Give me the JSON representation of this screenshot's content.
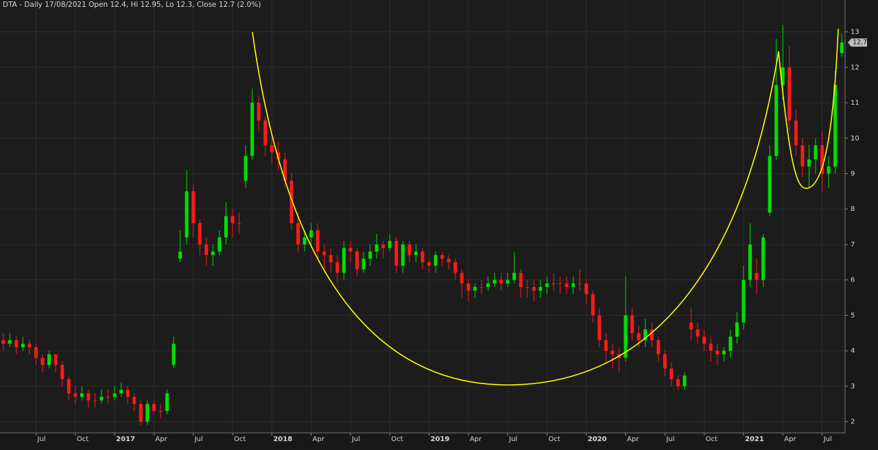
{
  "chart_data": {
    "type": "candlestick",
    "title": "DTA - Daily 17/08/2021 Open 12.4, Hi 12.95, Lo 12.3, Close 12.7 (2.0%)",
    "categories": [
      null,
      null,
      null,
      null,
      null,
      "Jul",
      null,
      null,
      null,
      null,
      null,
      "Oct",
      null,
      null,
      null,
      null,
      null,
      "2017",
      null,
      null,
      null,
      null,
      null,
      "Apr",
      null,
      null,
      null,
      null,
      null,
      "Jul",
      null,
      null,
      null,
      null,
      null,
      "Oct",
      null,
      null,
      null,
      null,
      null,
      "2018",
      null,
      null,
      null,
      null,
      null,
      "Apr",
      null,
      null,
      null,
      null,
      null,
      "Jul",
      null,
      null,
      null,
      null,
      null,
      "Oct",
      null,
      null,
      null,
      null,
      null,
      "2019",
      null,
      null,
      null,
      null,
      null,
      "Apr",
      null,
      null,
      null,
      null,
      null,
      "Jul",
      null,
      null,
      null,
      null,
      null,
      "Oct",
      null,
      null,
      null,
      null,
      null,
      "2020",
      null,
      null,
      null,
      null,
      null,
      "Apr",
      null,
      null,
      null,
      null,
      null,
      "Jul",
      null,
      null,
      null,
      null,
      null,
      "Oct",
      null,
      null,
      null,
      null,
      null,
      "2021",
      null,
      null,
      null,
      null,
      null,
      "Apr",
      null,
      null,
      null,
      null,
      null,
      "Jul",
      null,
      null,
      null
    ],
    "open": [
      4.3,
      4.2,
      4.3,
      4.1,
      4.2,
      4.1,
      3.8,
      3.6,
      3.9,
      3.6,
      3.2,
      2.8,
      2.7,
      2.8,
      2.6,
      2.6,
      2.7,
      2.7,
      2.8,
      2.9,
      2.7,
      2.5,
      2.0,
      2.5,
      2.3,
      2.3,
      3.6,
      6.6,
      7.2,
      8.5,
      7.6,
      7.0,
      6.7,
      6.8,
      7.2,
      7.8,
      7.6,
      8.8,
      9.5,
      11.0,
      10.5,
      9.8,
      9.6,
      9.4,
      8.8,
      7.6,
      7.0,
      7.2,
      7.4,
      6.8,
      6.7,
      6.5,
      6.2,
      6.9,
      6.8,
      6.3,
      6.6,
      6.8,
      7.0,
      6.9,
      7.1,
      6.4,
      7.0,
      6.7,
      6.8,
      6.5,
      6.4,
      6.7,
      6.6,
      6.5,
      6.2,
      5.9,
      5.7,
      5.8,
      5.8,
      5.9,
      6.0,
      5.9,
      6.0,
      6.2,
      5.8,
      5.8,
      5.7,
      5.8,
      5.9,
      5.9,
      5.9,
      5.8,
      5.9,
      5.9,
      5.6,
      5.0,
      4.3,
      4.0,
      3.9,
      3.8,
      5.0,
      4.5,
      4.3,
      4.6,
      4.3,
      3.9,
      3.5,
      3.2,
      3.0,
      4.8,
      4.6,
      4.4,
      4.2,
      4.0,
      3.9,
      4.0,
      4.4,
      4.8,
      6.0,
      6.2,
      6.0,
      7.9,
      9.5,
      11.5,
      12.0,
      10.5,
      9.8,
      9.2,
      9.4,
      9.8,
      9.0,
      9.2,
      12.4
    ],
    "high": [
      4.5,
      4.5,
      4.4,
      4.4,
      4.3,
      4.2,
      3.9,
      4.0,
      3.9,
      3.7,
      3.3,
      3.0,
      3.0,
      2.9,
      2.8,
      2.9,
      2.9,
      3.0,
      3.1,
      3.0,
      2.8,
      2.6,
      2.6,
      2.6,
      2.5,
      2.9,
      4.4,
      7.4,
      9.1,
      8.7,
      7.7,
      7.2,
      7.0,
      7.4,
      8.2,
      8.0,
      7.9,
      9.8,
      11.4,
      11.2,
      10.6,
      10.0,
      9.9,
      9.6,
      9.0,
      7.9,
      7.4,
      7.6,
      7.6,
      7.0,
      6.9,
      6.7,
      7.1,
      7.1,
      6.9,
      6.8,
      7.0,
      7.3,
      7.1,
      7.3,
      7.2,
      7.1,
      7.1,
      7.0,
      6.9,
      6.6,
      6.8,
      6.8,
      6.7,
      6.6,
      6.3,
      6.0,
      5.9,
      6.0,
      6.1,
      6.2,
      6.2,
      6.2,
      6.8,
      6.3,
      6.0,
      6.0,
      6.0,
      6.1,
      6.2,
      6.1,
      6.1,
      6.1,
      6.3,
      6.0,
      5.7,
      5.2,
      4.5,
      4.2,
      4.1,
      6.1,
      5.2,
      4.7,
      4.9,
      4.8,
      4.4,
      4.0,
      3.7,
      3.3,
      3.4,
      5.2,
      4.8,
      4.6,
      4.4,
      4.2,
      4.1,
      4.6,
      5.1,
      6.4,
      7.6,
      6.6,
      7.3,
      9.8,
      12.8,
      13.2,
      12.6,
      10.8,
      10.0,
      9.8,
      10.0,
      10.2,
      9.5,
      11.9,
      12.95
    ],
    "low": [
      4.0,
      4.1,
      3.9,
      4.0,
      3.9,
      3.6,
      3.4,
      3.5,
      3.4,
      3.0,
      2.6,
      2.5,
      2.6,
      2.4,
      2.4,
      2.5,
      2.5,
      2.6,
      2.7,
      2.5,
      2.3,
      1.9,
      1.9,
      2.2,
      2.1,
      2.2,
      3.5,
      6.5,
      7.0,
      7.2,
      6.7,
      6.4,
      6.4,
      6.7,
      7.0,
      7.2,
      7.3,
      8.6,
      9.4,
      10.2,
      9.5,
      9.3,
      9.1,
      8.6,
      7.4,
      6.8,
      6.8,
      7.0,
      6.6,
      6.3,
      6.2,
      5.9,
      6.0,
      6.5,
      6.1,
      6.2,
      6.4,
      6.6,
      6.6,
      6.8,
      6.2,
      6.2,
      6.5,
      6.5,
      6.3,
      6.2,
      6.2,
      6.4,
      6.3,
      6.0,
      5.5,
      5.4,
      5.5,
      5.6,
      5.7,
      5.8,
      5.7,
      5.8,
      5.9,
      5.5,
      5.5,
      5.4,
      5.5,
      5.6,
      5.7,
      5.6,
      5.6,
      5.6,
      5.7,
      5.3,
      4.8,
      4.1,
      3.7,
      3.5,
      3.4,
      3.7,
      4.3,
      4.1,
      4.1,
      4.1,
      3.7,
      3.3,
      3.0,
      2.9,
      2.9,
      4.3,
      4.2,
      4.0,
      3.7,
      3.6,
      3.7,
      3.8,
      4.2,
      4.6,
      5.8,
      5.6,
      5.8,
      7.8,
      9.4,
      11.1,
      10.2,
      9.5,
      8.9,
      8.6,
      9.0,
      8.5,
      8.6,
      9.0,
      12.3
    ],
    "close": [
      4.2,
      4.3,
      4.1,
      4.2,
      4.1,
      3.8,
      3.6,
      3.9,
      3.6,
      3.2,
      2.8,
      2.7,
      2.8,
      2.6,
      2.6,
      2.7,
      2.7,
      2.8,
      2.9,
      2.7,
      2.5,
      2.0,
      2.5,
      2.3,
      2.3,
      2.8,
      4.2,
      6.8,
      8.5,
      7.6,
      7.0,
      6.7,
      6.8,
      7.2,
      7.8,
      7.6,
      7.6,
      9.5,
      11.0,
      10.5,
      9.8,
      9.6,
      9.4,
      8.8,
      7.6,
      7.0,
      7.2,
      7.4,
      6.8,
      6.7,
      6.5,
      6.2,
      6.9,
      6.8,
      6.3,
      6.6,
      6.8,
      7.0,
      6.9,
      7.1,
      6.4,
      7.0,
      6.7,
      6.8,
      6.5,
      6.4,
      6.7,
      6.6,
      6.5,
      6.2,
      5.9,
      5.7,
      5.8,
      5.8,
      5.9,
      6.0,
      5.9,
      6.0,
      6.2,
      5.8,
      5.8,
      5.7,
      5.8,
      5.9,
      5.9,
      5.9,
      5.8,
      5.9,
      5.9,
      5.6,
      5.0,
      4.3,
      4.0,
      3.9,
      3.8,
      5.0,
      4.5,
      4.3,
      4.6,
      4.3,
      3.9,
      3.5,
      3.2,
      3.0,
      3.3,
      4.6,
      4.4,
      4.2,
      4.0,
      3.9,
      4.0,
      4.4,
      4.8,
      6.0,
      7.0,
      6.0,
      7.2,
      9.5,
      11.5,
      12.0,
      10.5,
      9.8,
      9.2,
      9.4,
      9.8,
      9.0,
      9.2,
      11.5,
      12.7
    ],
    "up_color": "#00e000",
    "down_color": "#ff1a1a",
    "ylim": [
      1.2,
      13.9
    ],
    "yticks": [
      2,
      3,
      4,
      5,
      6,
      7,
      8,
      9,
      10,
      11,
      12,
      13
    ],
    "grid": true
  }
}
